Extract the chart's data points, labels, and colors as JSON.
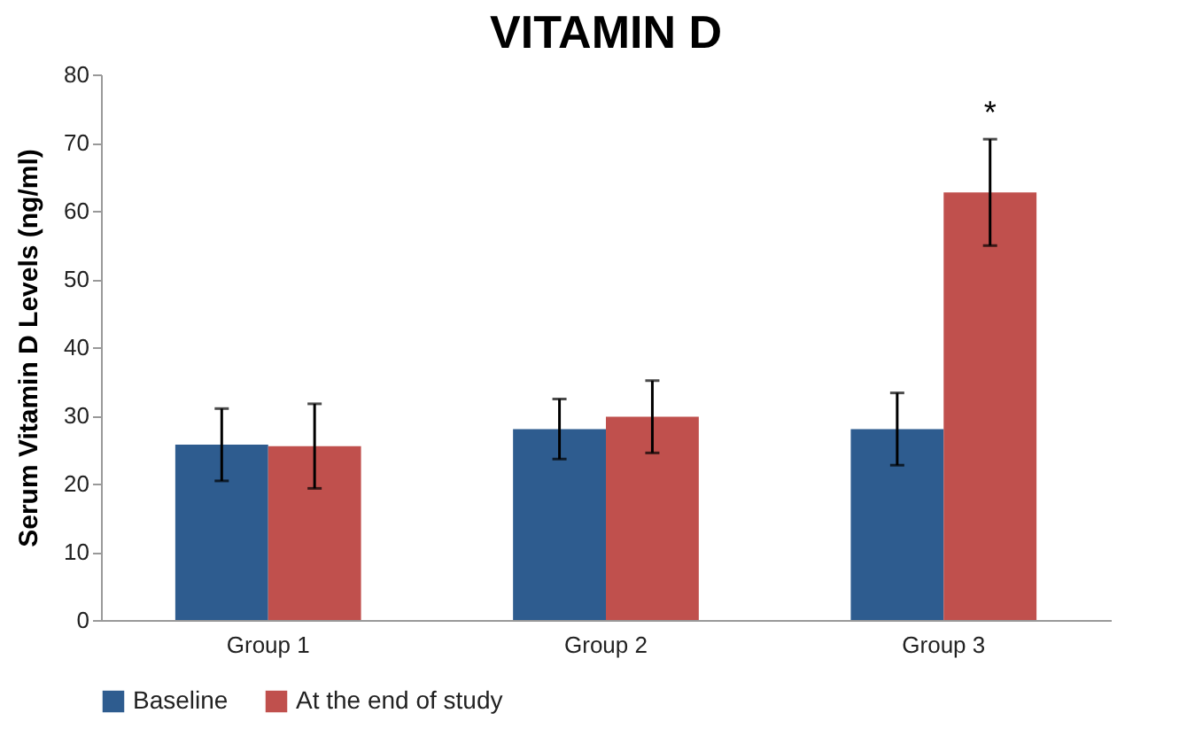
{
  "chart_data": {
    "type": "bar",
    "title": "VITAMIN D",
    "ylabel": "Serum Vitamin D Levels (ng/ml)",
    "categories": [
      "Group 1",
      "Group 2",
      "Group 3"
    ],
    "series": [
      {
        "name": "Baseline",
        "color": "#2e5c8f",
        "values": [
          25.7,
          28.0,
          28.0
        ],
        "errors": [
          5.3,
          4.4,
          5.3
        ]
      },
      {
        "name": "At the end of study",
        "color": "#c0504d",
        "values": [
          25.5,
          29.8,
          62.7
        ],
        "errors": [
          6.2,
          5.3,
          7.8
        ]
      }
    ],
    "ylim": [
      0,
      80
    ],
    "yticks": [
      0,
      10,
      20,
      30,
      40,
      50,
      60,
      70,
      80
    ],
    "grid": false,
    "legend": "bottom",
    "annotations": [
      "*"
    ]
  }
}
